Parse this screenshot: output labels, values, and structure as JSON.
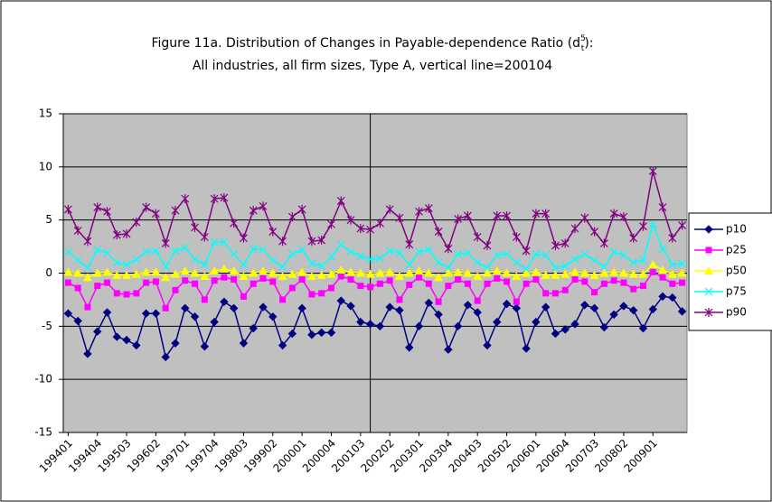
{
  "chart_data": {
    "type": "line",
    "title": [
      "Figure 11a. Distribution of Changes in Payable-dependence Ratio (d",
      "5",
      "t",
      "):"
    ],
    "subtitle": "All industries, all firm sizes, Type A, vertical line=200104",
    "categories": [
      "199401",
      null,
      null,
      "199404",
      null,
      null,
      "199503",
      null,
      null,
      "199602",
      null,
      null,
      "199701",
      null,
      null,
      "199704",
      null,
      null,
      "199803",
      null,
      null,
      "199902",
      null,
      null,
      "200001",
      null,
      null,
      "200004",
      null,
      null,
      "200103",
      null,
      null,
      "200202",
      null,
      null,
      "200301",
      null,
      null,
      "200304",
      null,
      null,
      "200403",
      null,
      null,
      "200502",
      null,
      null,
      "200601",
      null,
      null,
      "200604",
      null,
      null,
      "200703",
      null,
      null,
      "200802",
      null,
      null,
      "200901",
      null,
      null,
      null
    ],
    "vline_at": 31,
    "ylim": [
      -15,
      15
    ],
    "yticks": [
      -15,
      -10,
      -5,
      0,
      5,
      10,
      15
    ],
    "grid": true,
    "legend": "right",
    "series": [
      {
        "name": "p10",
        "color": "#000080",
        "marker": "diamond",
        "values": [
          -3.8,
          -4.5,
          -7.6,
          -5.5,
          -3.7,
          -6,
          -6.3,
          -6.8,
          -3.8,
          -3.8,
          -7.9,
          -6.6,
          -3.3,
          -4.1,
          -6.9,
          -4.6,
          -2.7,
          -3.3,
          -6.6,
          -5.2,
          -3.2,
          -4.1,
          -6.8,
          -5.7,
          -3.3,
          -5.8,
          -5.6,
          -5.6,
          -2.6,
          -3.1,
          -4.6,
          -4.8,
          -5,
          -3.2,
          -3.5,
          -7,
          -5,
          -2.8,
          -3.9,
          -7.2,
          -5,
          -3,
          -3.7,
          -6.8,
          -4.6,
          -2.9,
          -3.3,
          -7.1,
          -4.6,
          -3.2,
          -5.7,
          -5.3,
          -4.8,
          -3,
          -3.3,
          -5.1,
          -3.9,
          -3.1,
          -3.5,
          -5.2,
          -3.4,
          -2.2,
          -2.3,
          -3.6
        ]
      },
      {
        "name": "p25",
        "color": "#ff00ff",
        "marker": "square",
        "values": [
          -0.9,
          -1.4,
          -3.2,
          -1.2,
          -0.9,
          -1.9,
          -2,
          -1.9,
          -0.9,
          -0.8,
          -3.3,
          -1.6,
          -0.7,
          -1,
          -2.5,
          -0.7,
          -0.4,
          -0.6,
          -2.2,
          -1,
          -0.5,
          -0.8,
          -2.5,
          -1.4,
          -0.6,
          -2,
          -1.9,
          -1.4,
          -0.3,
          -0.6,
          -1.2,
          -1.3,
          -1,
          -0.7,
          -2.5,
          -1.1,
          -0.4,
          -1,
          -2.7,
          -1.2,
          -0.6,
          -1,
          -2.6,
          -1,
          -0.5,
          -0.8,
          -2.7,
          -1,
          -0.6,
          -1.9,
          -1.9,
          -1.6,
          -0.6,
          -0.8,
          -1.8,
          -1,
          -0.7,
          -0.9,
          -1.5,
          -1.2,
          0.1,
          -0.4,
          -1,
          -0.9
        ]
      },
      {
        "name": "p50",
        "color": "#ffff00",
        "marker": "triangle",
        "values": [
          0.1,
          0,
          -0.4,
          0,
          0.1,
          -0.2,
          -0.2,
          -0.1,
          0.1,
          0.1,
          -0.4,
          -0.1,
          0.2,
          0,
          -0.3,
          0.2,
          0.4,
          0.2,
          -0.3,
          0,
          0.2,
          0,
          -0.3,
          -0.1,
          0.1,
          -0.3,
          -0.2,
          -0.1,
          0.3,
          0.1,
          0,
          -0.1,
          0,
          0.1,
          -0.3,
          0,
          0.2,
          0,
          -0.4,
          0,
          0.1,
          0,
          -0.3,
          0,
          0.2,
          0,
          -0.3,
          0,
          0.1,
          -0.2,
          -0.2,
          -0.1,
          0.1,
          0,
          -0.2,
          0,
          0.1,
          0,
          -0.1,
          -0.1,
          0.8,
          0.3,
          -0.1,
          0
        ]
      },
      {
        "name": "p75",
        "color": "#00ffff",
        "marker": "x",
        "values": [
          2,
          1.2,
          0.5,
          2.2,
          1.9,
          1,
          0.8,
          1.3,
          2,
          2.1,
          0.6,
          2.1,
          2.4,
          1.3,
          0.8,
          2.9,
          2.9,
          1.8,
          0.8,
          2.3,
          2.2,
          1.2,
          0.6,
          1.8,
          2.2,
          0.9,
          0.7,
          1.5,
          2.7,
          2,
          1.6,
          1.3,
          1.4,
          2.1,
          1.9,
          0.8,
          2,
          2.2,
          1,
          0.5,
          1.8,
          1.9,
          1,
          0.5,
          1.7,
          1.8,
          1,
          0.4,
          1.8,
          1.7,
          0.5,
          0.7,
          1.3,
          1.8,
          1.2,
          0.6,
          2,
          1.7,
          1,
          1.2,
          4.6,
          2.3,
          0.8,
          0.9
        ]
      },
      {
        "name": "p90",
        "color": "#800080",
        "marker": "star",
        "values": [
          6,
          4,
          3,
          6.2,
          5.8,
          3.6,
          3.7,
          4.8,
          6.2,
          5.6,
          2.8,
          5.9,
          7,
          4.3,
          3.4,
          7,
          7.1,
          4.7,
          3.3,
          5.9,
          6.3,
          3.9,
          3,
          5.3,
          6,
          3,
          3.1,
          4.6,
          6.8,
          5,
          4.2,
          4.1,
          4.7,
          6,
          5.2,
          2.7,
          5.8,
          6.1,
          3.9,
          2.3,
          5.1,
          5.4,
          3.4,
          2.6,
          5.4,
          5.4,
          3.4,
          2.1,
          5.6,
          5.6,
          2.6,
          2.8,
          4.2,
          5.2,
          3.9,
          2.8,
          5.6,
          5.3,
          3.3,
          4.4,
          9.6,
          6.2,
          3.3,
          4.5
        ]
      }
    ]
  }
}
